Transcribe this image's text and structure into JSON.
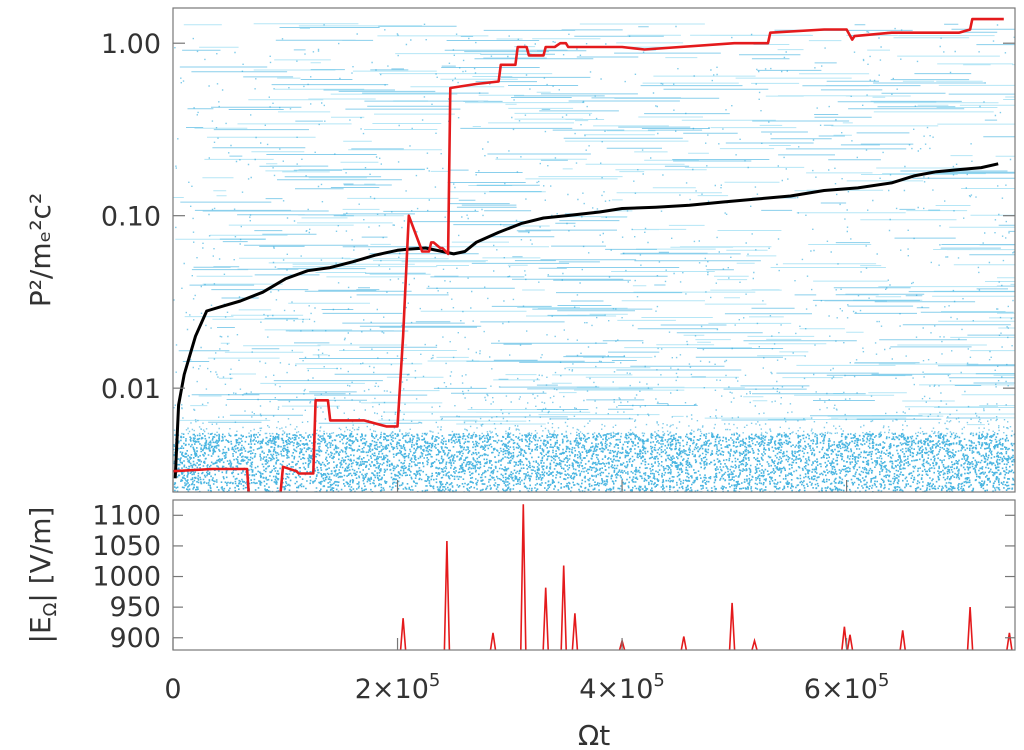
{
  "chart_data": [
    {
      "type": "scatter",
      "panel": "top",
      "ylabel": "P²/mₑ²c²",
      "y_scale": "log",
      "xlim": [
        0,
        750000
      ],
      "ylim": [
        0.0025,
        1.6
      ],
      "y_ticks": [
        0.01,
        0.1,
        1.0
      ],
      "y_tick_labels": [
        "0.01",
        "0.10",
        "1.00"
      ],
      "grid": false,
      "background_points": {
        "description_color": "#29a8dc",
        "dense_band_y": [
          0.0025,
          0.0055
        ],
        "streak_y_range": [
          0.006,
          1.3
        ]
      },
      "series": [
        {
          "color": "#000000",
          "x": [
            2000,
            5000,
            10000,
            20000,
            30000,
            45000,
            60000,
            80000,
            100000,
            120000,
            140000,
            160000,
            180000,
            190000,
            200000,
            210000,
            225000,
            240000,
            250000,
            260000,
            270000,
            290000,
            310000,
            330000,
            350000,
            380000,
            400000,
            430000,
            460000,
            490000,
            520000,
            550000,
            580000,
            610000,
            640000,
            660000,
            680000,
            700000,
            720000,
            735000
          ],
          "y": [
            0.003,
            0.008,
            0.012,
            0.02,
            0.028,
            0.03,
            0.032,
            0.036,
            0.043,
            0.048,
            0.05,
            0.054,
            0.059,
            0.061,
            0.063,
            0.064,
            0.065,
            0.062,
            0.06,
            0.062,
            0.07,
            0.08,
            0.09,
            0.097,
            0.1,
            0.105,
            0.11,
            0.112,
            0.115,
            0.12,
            0.125,
            0.13,
            0.14,
            0.145,
            0.155,
            0.17,
            0.18,
            0.185,
            0.19,
            0.2
          ]
        },
        {
          "color": "#e41a1c",
          "x": [
            0,
            35000,
            66000,
            68000,
            95000,
            98000,
            110000,
            112000,
            125000,
            127000,
            138000,
            140000,
            170000,
            190000,
            200000,
            205000,
            210000,
            222000,
            228000,
            230000,
            232000,
            238000,
            240000,
            245000,
            247000,
            270000,
            290000,
            292000,
            305000,
            307000,
            315000,
            317000,
            330000,
            332000,
            340000,
            345000,
            350000,
            352000,
            400000,
            420000,
            500000,
            520000,
            530000,
            532000,
            580000,
            600000,
            605000,
            607000,
            640000,
            700000,
            710000,
            712000,
            740000
          ],
          "y": [
            0.0033,
            0.0034,
            0.0034,
            0.0022,
            0.0022,
            0.0035,
            0.0033,
            0.0032,
            0.0032,
            0.0085,
            0.0085,
            0.0065,
            0.0065,
            0.006,
            0.006,
            0.02,
            0.1,
            0.062,
            0.062,
            0.07,
            0.07,
            0.065,
            0.065,
            0.06,
            0.55,
            0.58,
            0.6,
            0.75,
            0.75,
            0.95,
            0.95,
            0.85,
            0.85,
            0.95,
            0.95,
            1.0,
            1.0,
            0.95,
            0.95,
            0.92,
            1.0,
            1.0,
            1.0,
            1.15,
            1.2,
            1.2,
            1.05,
            1.1,
            1.15,
            1.15,
            1.2,
            1.38,
            1.38
          ]
        }
      ]
    },
    {
      "type": "line",
      "panel": "bottom",
      "xlabel": "Ωt",
      "ylabel": "|E",
      "ylabel_sub": "Ω",
      "ylabel_suffix": "| [V/m]",
      "xlim": [
        0,
        750000
      ],
      "ylim": [
        880,
        1125
      ],
      "x_ticks": [
        0,
        200000,
        400000,
        600000
      ],
      "x_tick_labels": [
        {
          "base": "0",
          "exp": ""
        },
        {
          "base": "2×10",
          "exp": "5"
        },
        {
          "base": "4×10",
          "exp": "5"
        },
        {
          "base": "6×10",
          "exp": "5"
        }
      ],
      "y_ticks": [
        900,
        950,
        1000,
        1050,
        1100
      ],
      "y_tick_labels": [
        "900",
        "950",
        "1000",
        "1050",
        "1100"
      ],
      "color": "#e41a1c",
      "baseline": 880,
      "spikes": {
        "x": [
          205000,
          244000,
          285000,
          312000,
          332000,
          348000,
          358000,
          400000,
          455000,
          498000,
          518000,
          598000,
          603000,
          650000,
          710000,
          745000
        ],
        "y": [
          932,
          1058,
          908,
          1118,
          982,
          1018,
          940,
          895,
          902,
          957,
          895,
          918,
          905,
          912,
          950,
          908
        ]
      }
    }
  ]
}
